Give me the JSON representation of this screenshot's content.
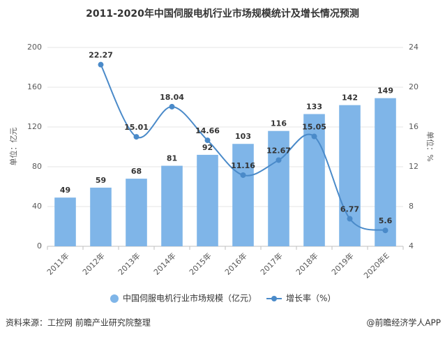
{
  "chart_data": {
    "type": "bar_line",
    "title": "2011-2020年中国伺服电机行业市场规模统计及增长情况预测",
    "categories": [
      "2011年",
      "2012年",
      "2013年",
      "2014年",
      "2015年",
      "2016年",
      "2017年",
      "2018年",
      "2019年",
      "2020年E"
    ],
    "series": [
      {
        "name": "中国伺服电机行业市场规模（亿元）",
        "color": "#7fb5e8",
        "values": [
          49,
          59,
          68,
          81,
          92,
          103,
          116,
          133,
          142,
          149
        ]
      },
      {
        "name": "增长率（%）",
        "color": "#4a8ac9",
        "axis": "y2",
        "values": [
          null,
          22.27,
          15.01,
          18.04,
          14.66,
          11.16,
          12.67,
          15.05,
          6.77,
          5.6
        ]
      }
    ],
    "ylim": [
      0,
      200
    ],
    "yticks": [
      0,
      40,
      80,
      120,
      160,
      200
    ],
    "y2lim": [
      4,
      24
    ],
    "y2ticks": [
      4,
      8,
      12,
      16,
      20,
      24
    ],
    "ylabel": "单位：亿元",
    "y2label": "单位：%",
    "source": "资料来源：工控网 前瞻产业研究院整理",
    "watermark": "@前瞻经济学人APP"
  }
}
